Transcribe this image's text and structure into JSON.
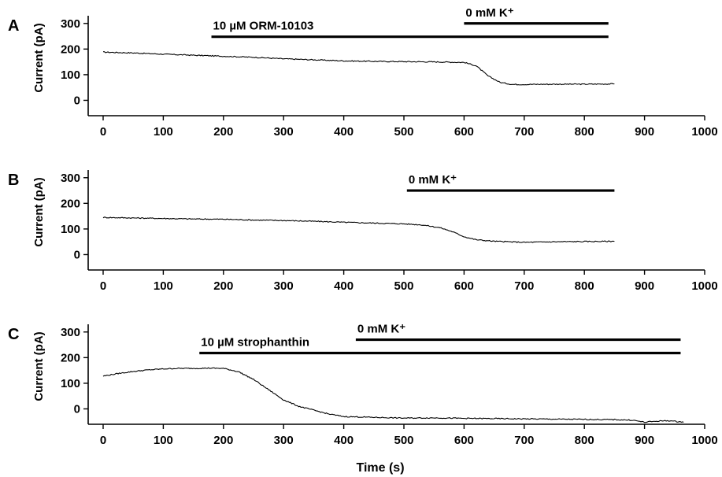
{
  "chart_data": [
    {
      "type": "line",
      "panel_label": "A",
      "ylabel": "Current (pA)",
      "xlabel": "",
      "xlim": [
        0,
        1000
      ],
      "ylim": [
        -60,
        330
      ],
      "x_ticks": [
        0,
        100,
        200,
        300,
        400,
        500,
        600,
        700,
        800,
        900,
        1000
      ],
      "y_ticks": [
        0,
        100,
        200,
        300
      ],
      "series": [
        {
          "x": [
            0,
            50,
            100,
            150,
            200,
            250,
            300,
            350,
            400,
            450,
            500,
            550,
            600,
            620,
            640,
            660,
            680,
            700,
            750,
            800,
            850
          ],
          "y": [
            188,
            185,
            180,
            176,
            172,
            168,
            162,
            158,
            154,
            152,
            151,
            150,
            148,
            135,
            95,
            70,
            62,
            62,
            63,
            63,
            64
          ]
        }
      ],
      "bars": [
        {
          "label": "10 µM ORM-10103",
          "start": 180,
          "end": 840,
          "level": 248
        },
        {
          "label": "0 mM K⁺",
          "start": 600,
          "end": 840,
          "level": 300
        }
      ]
    },
    {
      "type": "line",
      "panel_label": "B",
      "ylabel": "Current (pA)",
      "xlabel": "",
      "xlim": [
        0,
        1000
      ],
      "ylim": [
        -60,
        330
      ],
      "x_ticks": [
        0,
        100,
        200,
        300,
        400,
        500,
        600,
        700,
        800,
        900,
        1000
      ],
      "y_ticks": [
        0,
        100,
        200,
        300
      ],
      "series": [
        {
          "x": [
            0,
            50,
            100,
            150,
            200,
            250,
            300,
            350,
            400,
            450,
            500,
            530,
            560,
            580,
            600,
            620,
            650,
            700,
            750,
            800,
            850
          ],
          "y": [
            145,
            143,
            141,
            139,
            138,
            135,
            133,
            130,
            126,
            123,
            120,
            116,
            105,
            90,
            70,
            58,
            52,
            48,
            50,
            51,
            52
          ]
        }
      ],
      "bars": [
        {
          "label": "0 mM K⁺",
          "start": 505,
          "end": 850,
          "level": 250
        }
      ]
    },
    {
      "type": "line",
      "panel_label": "C",
      "ylabel": "Current (pA)",
      "xlabel": "Time (s)",
      "xlim": [
        0,
        1000
      ],
      "ylim": [
        -60,
        330
      ],
      "x_ticks": [
        0,
        100,
        200,
        300,
        400,
        500,
        600,
        700,
        800,
        900,
        1000
      ],
      "y_ticks": [
        0,
        100,
        200,
        300
      ],
      "series": [
        {
          "x": [
            0,
            25,
            50,
            75,
            100,
            125,
            150,
            175,
            200,
            225,
            250,
            275,
            300,
            325,
            350,
            375,
            400,
            450,
            500,
            550,
            600,
            650,
            700,
            750,
            800,
            850,
            880,
            900,
            920,
            940,
            965
          ],
          "y": [
            128,
            138,
            146,
            152,
            156,
            158,
            158,
            159,
            158,
            145,
            115,
            75,
            35,
            10,
            -5,
            -20,
            -30,
            -33,
            -36,
            -35,
            -37,
            -38,
            -39,
            -40,
            -41,
            -42,
            -44,
            -52,
            -48,
            -46,
            -52
          ]
        }
      ],
      "bars": [
        {
          "label": "10 µM strophanthin",
          "start": 160,
          "end": 960,
          "level": 218
        },
        {
          "label": "0 mM K⁺",
          "start": 420,
          "end": 960,
          "level": 270
        }
      ]
    }
  ]
}
